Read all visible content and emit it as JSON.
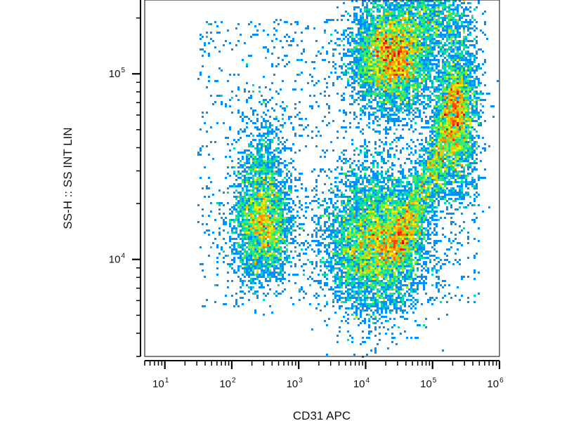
{
  "chart_data": {
    "type": "scatter",
    "subtype": "flow-cytometry-density-plot",
    "title": "",
    "xlabel": "CD31 APC",
    "ylabel": "SS-H :: SS INT LIN",
    "x_scale": "log",
    "y_scale": "log",
    "xlim": [
      5,
      1000000
    ],
    "ylim": [
      3000,
      250000
    ],
    "x_ticks": [
      {
        "value": 10,
        "base": "10",
        "exp": "1"
      },
      {
        "value": 100,
        "base": "10",
        "exp": "2"
      },
      {
        "value": 1000,
        "base": "10",
        "exp": "3"
      },
      {
        "value": 10000,
        "base": "10",
        "exp": "4"
      },
      {
        "value": 100000,
        "base": "10",
        "exp": "5"
      },
      {
        "value": 1000000,
        "base": "10",
        "exp": "6"
      }
    ],
    "y_ticks": [
      {
        "value": 10000,
        "base": "10",
        "exp": "4"
      },
      {
        "value": 100000,
        "base": "10",
        "exp": "5"
      }
    ],
    "grid": false,
    "legend": "none",
    "colormap": [
      "#0000b4",
      "#0044ff",
      "#00b4ff",
      "#00e0a0",
      "#50f050",
      "#f0f000",
      "#ff8c00",
      "#ff1e00",
      "#c80000"
    ],
    "populations": [
      {
        "x_center": 25000,
        "y_center": 125000,
        "relative_density": "highest"
      },
      {
        "x_center": 14000,
        "y_center": 12500,
        "relative_density": "high"
      },
      {
        "x_center": 280,
        "y_center": 15000,
        "relative_density": "medium"
      },
      {
        "x_center": 230000,
        "y_center": 60000,
        "relative_density": "medium"
      },
      {
        "x_center": 300,
        "y_center": 30000,
        "relative_density": "low"
      }
    ]
  }
}
